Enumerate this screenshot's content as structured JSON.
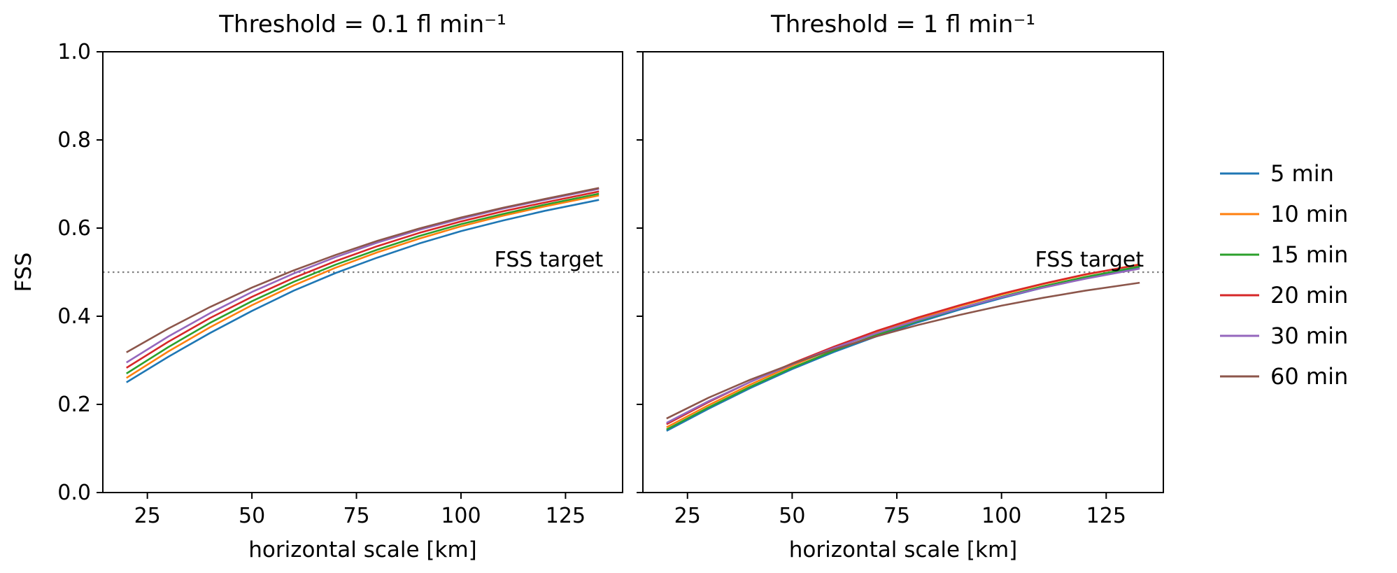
{
  "figure": {
    "background": "#ffffff",
    "ylabel": "FSS",
    "xlabel": "horizontal scale [km]",
    "target_label": "FSS target",
    "target_value": 0.5,
    "target_line_color": "#7f7f7f"
  },
  "legend": {
    "position": "right",
    "entries": [
      {
        "label": "5 min",
        "color": "#1f77b4"
      },
      {
        "label": "10 min",
        "color": "#ff7f0e"
      },
      {
        "label": "15 min",
        "color": "#2ca02c"
      },
      {
        "label": "20 min",
        "color": "#d62728"
      },
      {
        "label": "30 min",
        "color": "#9467bd"
      },
      {
        "label": "60 min",
        "color": "#8c564b"
      }
    ]
  },
  "chart_data": [
    {
      "type": "line",
      "title": "Threshold = 0.1 fl min⁻¹",
      "xlabel": "horizontal scale [km]",
      "ylabel": "FSS",
      "xlim": [
        14.35,
        138.65
      ],
      "ylim": [
        0.0,
        1.0
      ],
      "xticks": [
        25,
        50,
        75,
        100,
        125
      ],
      "yticks": [
        0.0,
        0.2,
        0.4,
        0.6,
        0.8,
        1.0
      ],
      "grid": false,
      "x": [
        20,
        30,
        40,
        50,
        60,
        70,
        80,
        90,
        100,
        110,
        120,
        133
      ],
      "series": [
        {
          "name": "5 min",
          "color": "#1f77b4",
          "values": [
            0.25,
            0.308,
            0.362,
            0.412,
            0.458,
            0.498,
            0.533,
            0.565,
            0.593,
            0.617,
            0.639,
            0.664
          ]
        },
        {
          "name": "10 min",
          "color": "#ff7f0e",
          "values": [
            0.26,
            0.32,
            0.375,
            0.425,
            0.47,
            0.51,
            0.545,
            0.576,
            0.604,
            0.628,
            0.649,
            0.674
          ]
        },
        {
          "name": "15 min",
          "color": "#2ca02c",
          "values": [
            0.27,
            0.33,
            0.385,
            0.434,
            0.478,
            0.517,
            0.551,
            0.582,
            0.609,
            0.632,
            0.653,
            0.678
          ]
        },
        {
          "name": "20 min",
          "color": "#d62728",
          "values": [
            0.283,
            0.342,
            0.396,
            0.444,
            0.487,
            0.525,
            0.559,
            0.589,
            0.615,
            0.638,
            0.658,
            0.683
          ]
        },
        {
          "name": "30 min",
          "color": "#9467bd",
          "values": [
            0.295,
            0.354,
            0.407,
            0.455,
            0.497,
            0.534,
            0.567,
            0.596,
            0.621,
            0.644,
            0.664,
            0.689
          ]
        },
        {
          "name": "60 min",
          "color": "#8c564b",
          "values": [
            0.318,
            0.372,
            0.421,
            0.465,
            0.504,
            0.539,
            0.571,
            0.599,
            0.624,
            0.646,
            0.666,
            0.691
          ]
        }
      ],
      "target_line": {
        "y": 0.5,
        "label": "FSS target"
      }
    },
    {
      "type": "line",
      "title": "Threshold = 1 fl min⁻¹",
      "xlabel": "horizontal scale [km]",
      "ylabel": "",
      "xlim": [
        14.35,
        138.65
      ],
      "ylim": [
        0.0,
        1.0
      ],
      "xticks": [
        25,
        50,
        75,
        100,
        125
      ],
      "yticks": [
        0.0,
        0.2,
        0.4,
        0.6,
        0.8,
        1.0
      ],
      "grid": false,
      "x": [
        20,
        30,
        40,
        50,
        60,
        70,
        80,
        90,
        100,
        110,
        120,
        133
      ],
      "series": [
        {
          "name": "5 min",
          "color": "#1f77b4",
          "values": [
            0.14,
            0.19,
            0.237,
            0.28,
            0.319,
            0.354,
            0.386,
            0.415,
            0.441,
            0.465,
            0.486,
            0.51
          ]
        },
        {
          "name": "10 min",
          "color": "#ff7f0e",
          "values": [
            0.148,
            0.198,
            0.245,
            0.288,
            0.327,
            0.362,
            0.394,
            0.423,
            0.449,
            0.473,
            0.494,
            0.518
          ]
        },
        {
          "name": "15 min",
          "color": "#2ca02c",
          "values": [
            0.143,
            0.193,
            0.24,
            0.283,
            0.322,
            0.357,
            0.389,
            0.418,
            0.444,
            0.468,
            0.489,
            0.513
          ]
        },
        {
          "name": "20 min",
          "color": "#d62728",
          "values": [
            0.155,
            0.205,
            0.251,
            0.293,
            0.331,
            0.366,
            0.397,
            0.425,
            0.451,
            0.474,
            0.495,
            0.517
          ]
        },
        {
          "name": "30 min",
          "color": "#9467bd",
          "values": [
            0.158,
            0.207,
            0.251,
            0.291,
            0.328,
            0.361,
            0.391,
            0.418,
            0.443,
            0.465,
            0.485,
            0.508
          ]
        },
        {
          "name": "60 min",
          "color": "#8c564b",
          "values": [
            0.168,
            0.215,
            0.256,
            0.292,
            0.325,
            0.354,
            0.38,
            0.403,
            0.424,
            0.442,
            0.458,
            0.476
          ]
        }
      ],
      "target_line": {
        "y": 0.5,
        "label": "FSS target"
      }
    }
  ]
}
